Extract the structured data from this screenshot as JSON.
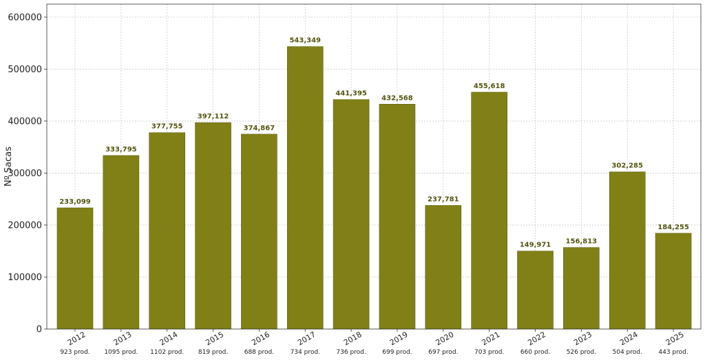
{
  "chart_data": {
    "type": "bar",
    "title": "",
    "xlabel": "",
    "ylabel": "Nº Sacas",
    "ylim": [
      0,
      625000
    ],
    "yticks": [
      "0",
      "100000",
      "200000",
      "300000",
      "400000",
      "500000",
      "600000"
    ],
    "grid": true,
    "categories": [
      "2012",
      "2013",
      "2014",
      "2015",
      "2016",
      "2017",
      "2018",
      "2019",
      "2020",
      "2021",
      "2022",
      "2023",
      "2024",
      "2025"
    ],
    "sublabels": [
      "923 prod.",
      "1095 prod.",
      "1102 prod.",
      "819 prod.",
      "688 prod.",
      "734 prod.",
      "736 prod.",
      "699 prod.",
      "697 prod.",
      "703 prod.",
      "660 prod.",
      "526 prod.",
      "504 prod.",
      "443 prod."
    ],
    "values": [
      233099,
      333795,
      377755,
      397112,
      374867,
      543349,
      441395,
      432568,
      237781,
      455618,
      149971,
      156813,
      302285,
      184255
    ],
    "value_labels": [
      "233,099",
      "333,795",
      "377,755",
      "397,112",
      "374,867",
      "543,349",
      "441,395",
      "432,568",
      "237,781",
      "455,618",
      "149,971",
      "156,813",
      "302,285",
      "184,255"
    ],
    "colors": {
      "bar": "#808017",
      "bar_edge": "#5f5f10",
      "value_label": "#545410"
    }
  }
}
